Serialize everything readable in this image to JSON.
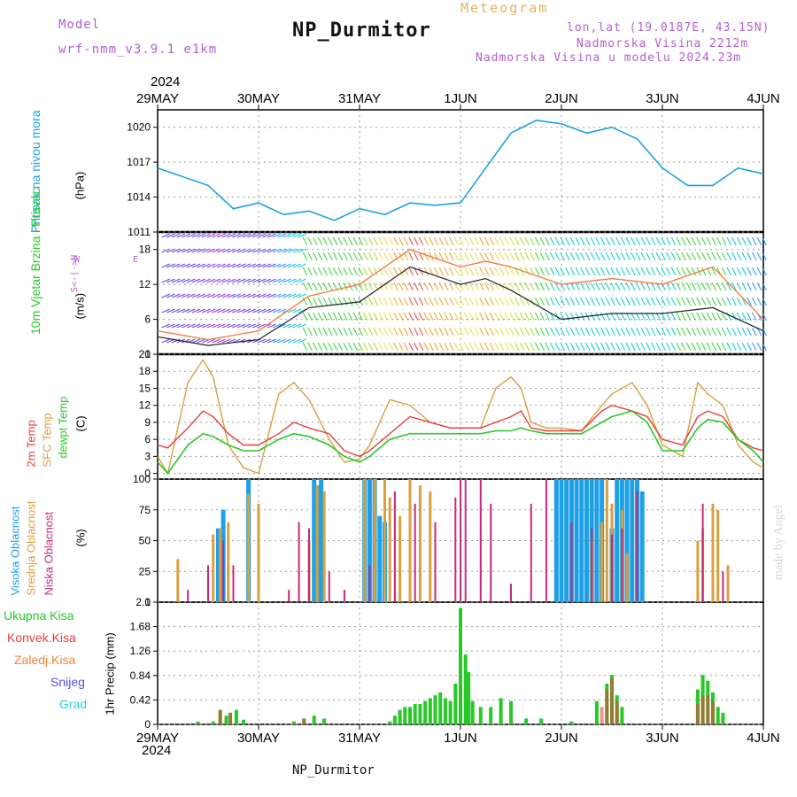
{
  "header": {
    "model_label": "Model",
    "model_name": "wrf-nmm_v3.9.1 e1km",
    "meteogram": "Meteogram",
    "station": "NP_Durmitor",
    "lonlat": "lon,lat (19.0187E, 43.15N)",
    "altitude": "Nadmorska Visina 2212m",
    "model_altitude": "Nadmorska Visina u modelu 2024.23m",
    "year": "2024",
    "footer_station": "NP_Durmitor",
    "watermark": "made by Angel"
  },
  "colors": {
    "pressure": "#1ea0e6",
    "temp2m": "#e83c3c",
    "sfc": "#d8a040",
    "dewpt": "#28c828",
    "high_cloud": "#1ea0e6",
    "mid_cloud": "#d8a040",
    "low_cloud": "#c8287c",
    "precip_total": "#28c828",
    "precip_conv": "#e83c3c",
    "precip_frz": "#f08040",
    "snow": "#5050e0",
    "grad": "#30d0d0"
  },
  "chart_data": [
    {
      "type": "line",
      "panel": "pressure",
      "ylabel": "Pritisak na nivou mora",
      "unit": "(hPa)",
      "ylim": [
        1011,
        1021.5
      ],
      "yticks": [
        1011,
        1014,
        1017,
        1020
      ],
      "x_dates": [
        "29MAY",
        "30MAY",
        "31MAY",
        "1JUN",
        "2JUN",
        "3JUN",
        "4JUN"
      ],
      "x_days": [
        0,
        0.5,
        0.75,
        1.0,
        1.25,
        1.5,
        1.75,
        2.0,
        2.25,
        2.5,
        2.75,
        3.0,
        3.25,
        3.5,
        3.75,
        4.0,
        4.25,
        4.5,
        4.75,
        5.0,
        5.25,
        5.5,
        5.75,
        6.0
      ],
      "series": [
        {
          "values": [
            1016.5,
            1015.0,
            1013.0,
            1013.5,
            1012.5,
            1012.8,
            1012.0,
            1013.0,
            1012.5,
            1013.5,
            1013.3,
            1013.5,
            1016.5,
            1019.5,
            1020.6,
            1020.3,
            1019.5,
            1020.0,
            1019.0,
            1016.5,
            1015.0,
            1015.0,
            1016.5,
            1016.0
          ]
        }
      ]
    },
    {
      "type": "line",
      "panel": "wind",
      "ylabel": "10m Vjetar Brzina i Pravac",
      "unit": "(m/s)",
      "compass": [
        "N",
        "S",
        "W",
        "E"
      ],
      "ylim": [
        0,
        21
      ],
      "yticks": [
        0,
        6,
        12,
        18
      ],
      "x_days": [
        0,
        0.5,
        1.0,
        1.5,
        2.0,
        2.5,
        3.0,
        3.25,
        3.5,
        4.0,
        4.5,
        5.0,
        5.5,
        6.0
      ],
      "series": [
        {
          "name": "mean",
          "values": [
            3,
            1.5,
            2.5,
            8,
            9,
            15,
            12,
            13,
            11,
            6,
            7,
            7,
            8,
            4
          ]
        },
        {
          "name": "gust",
          "values": [
            4,
            2.5,
            4,
            10,
            12,
            18,
            15,
            16,
            15,
            12,
            13,
            12,
            15,
            6
          ]
        }
      ]
    },
    {
      "type": "line",
      "panel": "temperature",
      "ylabel": [
        "2m Temp",
        "SFC Temp",
        "dewpt Temp"
      ],
      "unit": "(C)",
      "ylim": [
        -1,
        21
      ],
      "yticks": [
        0,
        3,
        6,
        9,
        12,
        15,
        18,
        21
      ],
      "x_days": [
        0,
        0.1,
        0.3,
        0.45,
        0.55,
        0.7,
        0.85,
        1.0,
        1.2,
        1.35,
        1.5,
        1.7,
        1.85,
        2.0,
        2.1,
        2.3,
        2.5,
        2.7,
        2.9,
        3.0,
        3.2,
        3.35,
        3.5,
        3.6,
        3.7,
        3.85,
        4.0,
        4.2,
        4.4,
        4.5,
        4.7,
        4.85,
        5.0,
        5.2,
        5.35,
        5.45,
        5.6,
        5.75,
        5.9,
        6.0
      ],
      "series": [
        {
          "name": "2m Temp",
          "values": [
            5,
            4.5,
            8,
            11,
            10,
            7,
            5,
            5,
            7,
            9,
            8,
            7,
            4,
            3,
            4,
            7,
            10,
            9,
            8,
            8,
            8,
            9,
            10,
            11,
            8,
            7.5,
            7.5,
            7.5,
            11,
            12,
            11,
            10,
            6,
            5,
            10,
            11,
            10,
            6,
            4.5,
            4
          ]
        },
        {
          "name": "SFC Temp",
          "values": [
            3,
            0,
            16,
            20,
            17,
            5,
            1,
            0,
            14,
            16,
            13,
            6,
            2,
            2.5,
            5,
            13,
            12,
            9,
            8,
            8,
            8,
            15,
            17,
            15,
            9,
            8,
            8,
            7.5,
            12,
            14,
            16,
            12,
            5,
            3,
            16,
            14,
            12,
            5,
            2,
            1
          ]
        },
        {
          "name": "dewpt Temp",
          "values": [
            2,
            0,
            5,
            7,
            6.5,
            5,
            4,
            4,
            6,
            7,
            6.5,
            5,
            3,
            2,
            3,
            6,
            7,
            7,
            7,
            7,
            7,
            7.5,
            7.5,
            8,
            7.5,
            7,
            7,
            7,
            9,
            10,
            11,
            9,
            4,
            4,
            8,
            9.5,
            9,
            6,
            4,
            2
          ]
        }
      ]
    },
    {
      "type": "bar",
      "panel": "cloud",
      "ylabel": [
        "Visoka Oblacnost",
        "Srednja Oblacnost",
        "Niska Oblacnost"
      ],
      "unit": "(%)",
      "ylim": [
        0,
        100
      ],
      "yticks": [
        0,
        25,
        50,
        75,
        100
      ],
      "series": [
        {
          "name": "Visoka Oblacnost",
          "bars": [
            [
              0.6,
              60
            ],
            [
              0.65,
              75
            ],
            [
              0.9,
              100
            ],
            [
              1.55,
              100
            ],
            [
              1.58,
              95
            ],
            [
              1.62,
              100
            ],
            [
              2.05,
              100
            ],
            [
              2.1,
              100
            ],
            [
              2.15,
              100
            ],
            [
              2.2,
              70
            ],
            [
              2.25,
              65
            ],
            [
              3.95,
              100
            ],
            [
              4.0,
              100
            ],
            [
              4.05,
              100
            ],
            [
              4.1,
              100
            ],
            [
              4.15,
              100
            ],
            [
              4.2,
              100
            ],
            [
              4.25,
              100
            ],
            [
              4.3,
              100
            ],
            [
              4.35,
              100
            ],
            [
              4.4,
              100
            ],
            [
              4.5,
              60
            ],
            [
              4.55,
              100
            ],
            [
              4.6,
              100
            ],
            [
              4.65,
              100
            ],
            [
              4.7,
              100
            ],
            [
              4.75,
              100
            ],
            [
              4.8,
              90
            ]
          ]
        },
        {
          "name": "Srednja Oblacnost",
          "bars": [
            [
              0.2,
              35
            ],
            [
              0.55,
              55
            ],
            [
              0.62,
              60
            ],
            [
              0.7,
              65
            ],
            [
              0.9,
              88
            ],
            [
              1.0,
              80
            ],
            [
              1.5,
              50
            ],
            [
              1.58,
              95
            ],
            [
              1.65,
              90
            ],
            [
              2.05,
              100
            ],
            [
              2.15,
              100
            ],
            [
              2.25,
              100
            ],
            [
              2.3,
              85
            ],
            [
              2.4,
              70
            ],
            [
              2.5,
              100
            ],
            [
              2.6,
              95
            ],
            [
              2.7,
              90
            ],
            [
              4.3,
              50
            ],
            [
              4.4,
              65
            ],
            [
              4.45,
              100
            ],
            [
              4.5,
              80
            ],
            [
              4.6,
              75
            ],
            [
              4.65,
              40
            ],
            [
              5.35,
              50
            ],
            [
              5.4,
              60
            ],
            [
              5.5,
              80
            ],
            [
              5.55,
              75
            ],
            [
              5.65,
              30
            ]
          ]
        },
        {
          "name": "Niska Oblacnost",
          "bars": [
            [
              0.3,
              10
            ],
            [
              0.5,
              30
            ],
            [
              0.65,
              50
            ],
            [
              0.75,
              30
            ],
            [
              1.3,
              10
            ],
            [
              1.4,
              65
            ],
            [
              1.5,
              60
            ],
            [
              1.7,
              25
            ],
            [
              1.85,
              10
            ],
            [
              2.1,
              30
            ],
            [
              2.35,
              90
            ],
            [
              2.55,
              80
            ],
            [
              2.75,
              65
            ],
            [
              2.95,
              85
            ],
            [
              3.0,
              100
            ],
            [
              3.05,
              100
            ],
            [
              3.2,
              100
            ],
            [
              3.3,
              80
            ],
            [
              3.5,
              15
            ],
            [
              3.7,
              80
            ],
            [
              3.85,
              100
            ],
            [
              4.1,
              65
            ],
            [
              4.3,
              60
            ],
            [
              4.5,
              55
            ],
            [
              4.6,
              60
            ],
            [
              4.75,
              90
            ],
            [
              5.4,
              80
            ],
            [
              5.6,
              25
            ]
          ]
        }
      ]
    },
    {
      "type": "bar",
      "panel": "precip",
      "ylabel": "1hr Precip",
      "unit": "(mm)",
      "legend": [
        "Ukupna Kisa",
        "Konvek.Kisa",
        "Zaledj.Kisa",
        "Snijeg",
        "Grad"
      ],
      "ylim": [
        0,
        2.1
      ],
      "yticks": [
        0,
        0.42,
        0.84,
        1.26,
        1.68,
        2.1
      ],
      "series": [
        {
          "name": "Ukupna Kisa",
          "bars": [
            [
              0.4,
              0.05
            ],
            [
              0.55,
              0.05
            ],
            [
              0.62,
              0.25
            ],
            [
              0.68,
              0.15
            ],
            [
              0.72,
              0.2
            ],
            [
              0.78,
              0.25
            ],
            [
              0.85,
              0.08
            ],
            [
              1.35,
              0.05
            ],
            [
              1.45,
              0.1
            ],
            [
              1.55,
              0.15
            ],
            [
              1.65,
              0.1
            ],
            [
              2.3,
              0.05
            ],
            [
              2.35,
              0.15
            ],
            [
              2.4,
              0.25
            ],
            [
              2.45,
              0.3
            ],
            [
              2.5,
              0.3
            ],
            [
              2.55,
              0.35
            ],
            [
              2.6,
              0.35
            ],
            [
              2.65,
              0.4
            ],
            [
              2.7,
              0.45
            ],
            [
              2.75,
              0.5
            ],
            [
              2.8,
              0.55
            ],
            [
              2.85,
              0.45
            ],
            [
              2.9,
              0.4
            ],
            [
              2.95,
              0.7
            ],
            [
              3.0,
              2.0
            ],
            [
              3.05,
              1.2
            ],
            [
              3.08,
              0.9
            ],
            [
              3.12,
              0.4
            ],
            [
              3.2,
              0.3
            ],
            [
              3.3,
              0.3
            ],
            [
              3.4,
              0.45
            ],
            [
              3.5,
              0.4
            ],
            [
              3.65,
              0.1
            ],
            [
              3.8,
              0.1
            ],
            [
              4.1,
              0.05
            ],
            [
              4.35,
              0.4
            ],
            [
              4.45,
              0.7
            ],
            [
              4.5,
              0.85
            ],
            [
              4.55,
              0.5
            ],
            [
              4.6,
              0.3
            ],
            [
              5.35,
              0.6
            ],
            [
              5.4,
              0.85
            ],
            [
              5.45,
              0.75
            ],
            [
              5.5,
              0.55
            ],
            [
              5.55,
              0.3
            ],
            [
              5.6,
              0.2
            ]
          ]
        },
        {
          "name": "Konvek.Kisa",
          "bars": [
            [
              0.62,
              0.25
            ],
            [
              0.72,
              0.2
            ],
            [
              1.45,
              0.1
            ],
            [
              4.4,
              0.3
            ],
            [
              4.45,
              0.6
            ],
            [
              4.5,
              0.8
            ],
            [
              4.55,
              0.4
            ],
            [
              5.35,
              0.35
            ],
            [
              5.4,
              0.5
            ],
            [
              5.45,
              0.5
            ],
            [
              5.5,
              0.4
            ]
          ]
        }
      ]
    }
  ]
}
